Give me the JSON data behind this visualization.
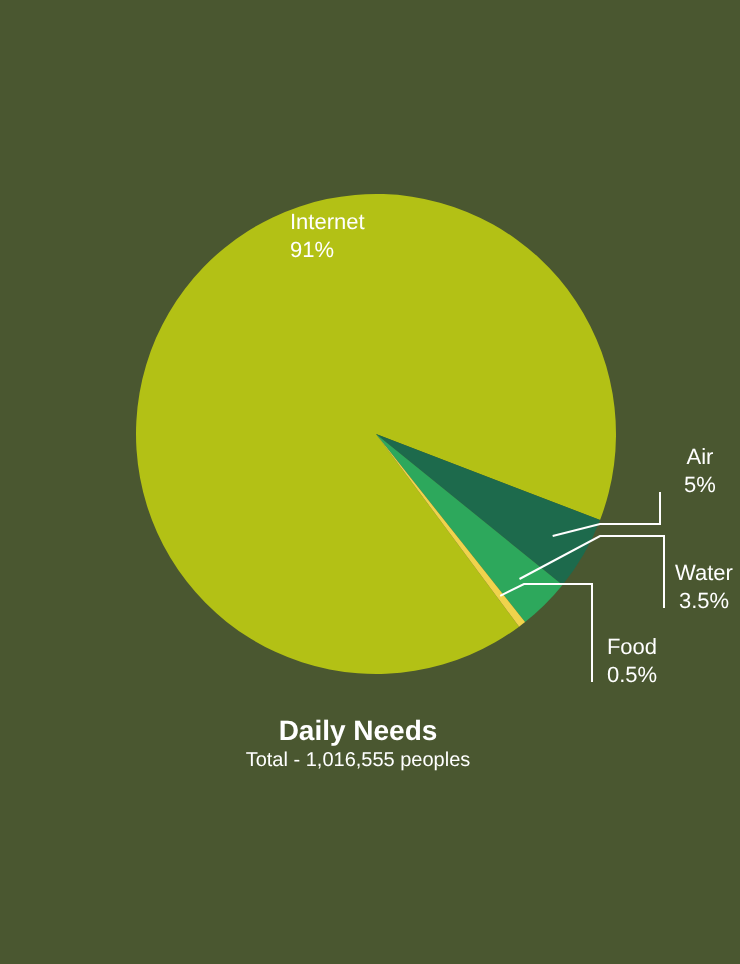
{
  "chart_data": {
    "type": "pie",
    "title": "Daily Needs",
    "subtitle": "Total - 1,016,555 peoples",
    "categories": [
      "Internet",
      "Air",
      "Water",
      "Food"
    ],
    "values": [
      91,
      5,
      3.5,
      0.5
    ],
    "value_labels": [
      "91%",
      "5%",
      "3.5%",
      "0.5%"
    ],
    "colors": [
      "#b3c115",
      "#1d6a4c",
      "#2da85c",
      "#f0d34c"
    ],
    "legend": false
  }
}
